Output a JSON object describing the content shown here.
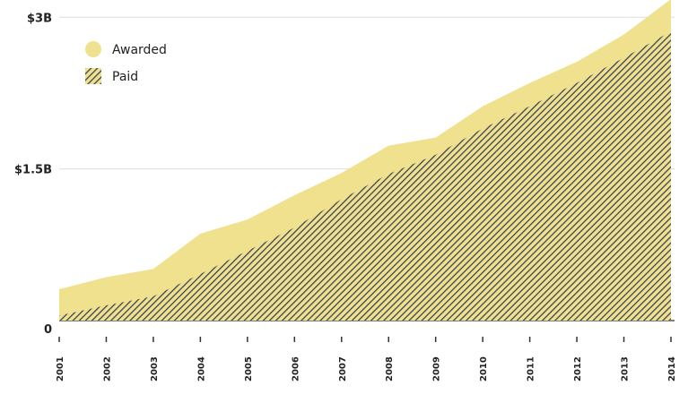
{
  "chart_data": {
    "type": "area",
    "x": [
      "2001",
      "2002",
      "2003",
      "2004",
      "2005",
      "2006",
      "2007",
      "2008",
      "2009",
      "2010",
      "2011",
      "2012",
      "2013",
      "2014"
    ],
    "series": [
      {
        "name": "Awarded",
        "values": [
          0.31,
          0.43,
          0.51,
          0.86,
          1.0,
          1.24,
          1.46,
          1.73,
          1.81,
          2.12,
          2.35,
          2.56,
          2.83,
          3.18
        ],
        "style": "solid"
      },
      {
        "name": "Paid",
        "values": [
          0.05,
          0.15,
          0.24,
          0.46,
          0.69,
          0.92,
          1.2,
          1.45,
          1.64,
          1.9,
          2.12,
          2.35,
          2.6,
          2.86
        ],
        "style": "hatched"
      }
    ],
    "y_ticks": [
      {
        "value": 0,
        "label": "0"
      },
      {
        "value": 1.5,
        "label": "$1.5B"
      },
      {
        "value": 3,
        "label": "$3B"
      }
    ],
    "ylim": [
      0,
      3.1
    ],
    "grid": true,
    "legend_position": "top-left",
    "colors": {
      "awarded_fill": "#f0e18f",
      "hatch_line": "#3b4256",
      "grid": "#dddddd",
      "axis": "#333333"
    }
  }
}
